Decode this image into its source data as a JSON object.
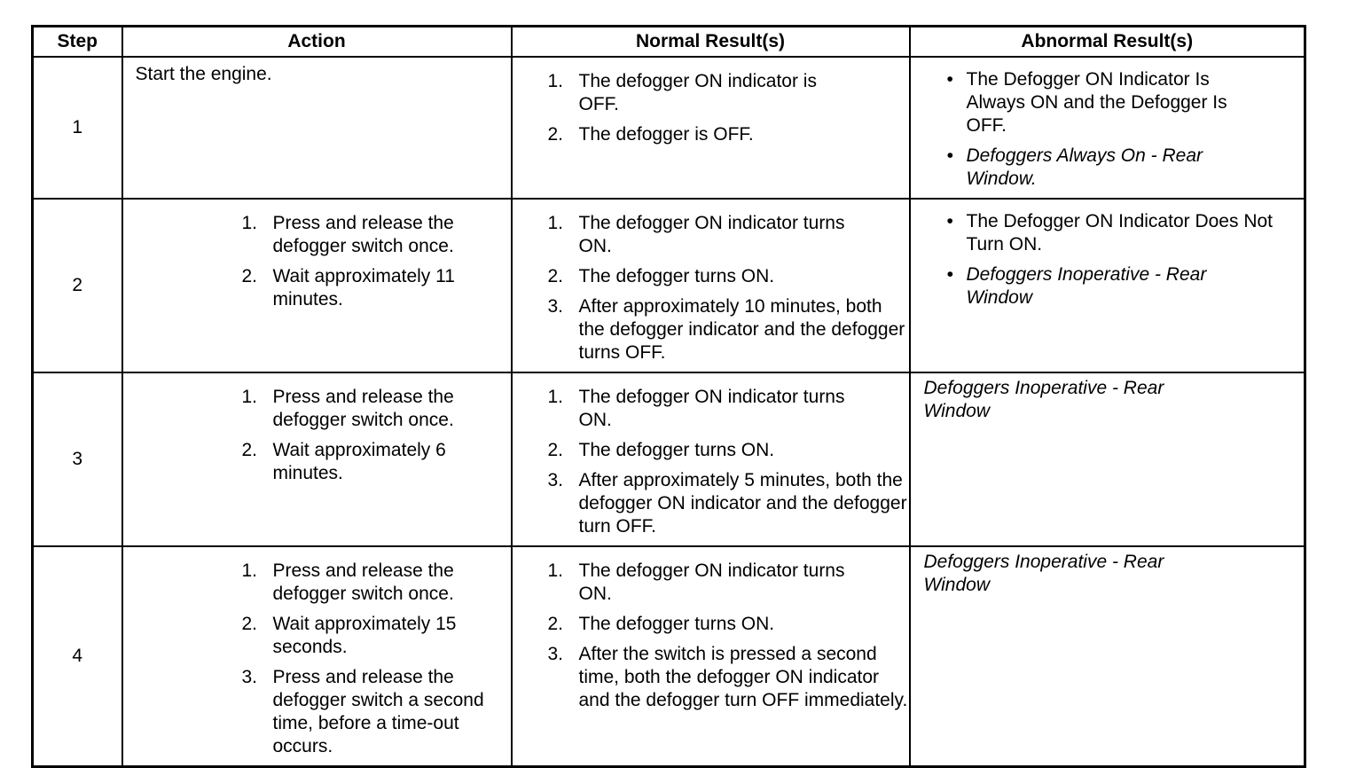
{
  "headers": [
    "Step",
    "Action",
    "Normal Result(s)",
    "Abnormal Result(s)"
  ],
  "rows": [
    {
      "step": "1",
      "action_plain": "Start the engine.",
      "normal": [
        "The defogger ON indicator is OFF.",
        "The defogger is OFF."
      ],
      "abnormal": [
        "The Defogger ON Indicator Is Always ON and the Defogger Is OFF.",
        "Defoggers Always On - Rear Window."
      ]
    },
    {
      "step": "2",
      "action": [
        "Press and release the defogger switch once.",
        "Wait approximately 11 minutes."
      ],
      "normal": [
        "The defogger ON indicator turns ON.",
        "The defogger turns ON.",
        "After approximately 10 minutes, both the defogger indicator and the defogger turns OFF."
      ],
      "abnormal": [
        "The Defogger ON Indicator Does Not Turn ON.",
        "Defoggers Inoperative - Rear Window"
      ]
    },
    {
      "step": "3",
      "action": [
        "Press and release the defogger switch once.",
        "Wait approximately 6 minutes."
      ],
      "normal": [
        "The defogger ON indicator turns ON.",
        "The defogger turns ON.",
        "After approximately 5  minutes, both the defogger ON indicator and the defogger turn OFF."
      ],
      "abnormal_plain": "Defoggers Inoperative - Rear Window"
    },
    {
      "step": "4",
      "action": [
        "Press and release the defogger switch once.",
        "Wait approximately 15 seconds.",
        "Press and release the defogger switch a second time, before a time-out occurs."
      ],
      "normal": [
        "The defogger ON indicator turns ON.",
        "The defogger turns ON.",
        "After the switch is pressed a second time, both the defogger ON indicator and the defogger turn OFF immediately."
      ],
      "abnormal_plain": "Defoggers Inoperative - Rear Window"
    }
  ]
}
